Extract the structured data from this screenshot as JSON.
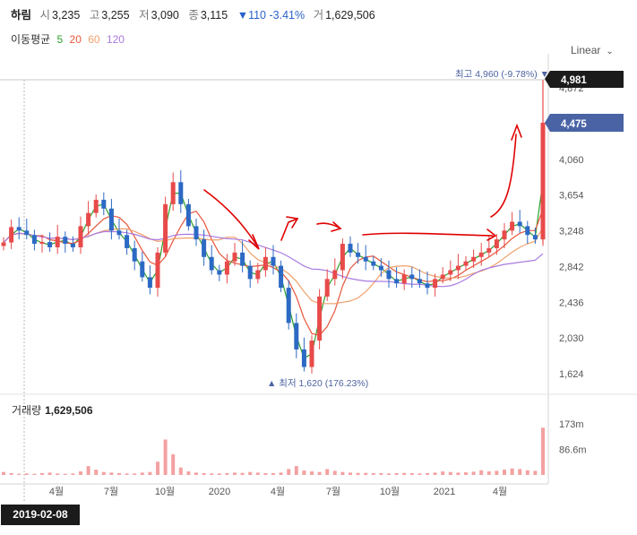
{
  "header": {
    "name": "하림",
    "open_label": "시",
    "open": "3,235",
    "high_label": "고",
    "high": "3,255",
    "low_label": "저",
    "low": "3,090",
    "close_label": "종",
    "close": "3,115",
    "change": "▼110 -3.41%",
    "vol_label": "거",
    "volume": "1,629,506"
  },
  "ma_legend": {
    "label": "이동평균",
    "p5": "5",
    "p20": "20",
    "p60": "60",
    "p120": "120",
    "colors": {
      "p5": "#2ca02c",
      "p20": "#e8553b",
      "p60": "#f0a06a",
      "p120": "#a97ae0"
    }
  },
  "scale_selector": {
    "label": "Linear",
    "icon": "chevron-down-icon"
  },
  "price_axis": {
    "ticks": [
      "4,872",
      "4,060",
      "3,654",
      "3,248",
      "2,842",
      "2,436",
      "2,030",
      "1,624"
    ]
  },
  "price_badges": {
    "high_badge": "4,981",
    "current_badge": "4,475"
  },
  "annotations": {
    "max_label": "최고 4,960 (-9.78%) ▼",
    "min_label": "▲ 최저 1,620 (176.23%)"
  },
  "volume_panel": {
    "label": "거래량",
    "value": "1,629,506",
    "ticks": [
      "173m",
      "86.6m"
    ]
  },
  "time_axis": {
    "labels": [
      "4월",
      "7월",
      "10월",
      "2020",
      "4월",
      "7월",
      "10월",
      "2021",
      "4월"
    ]
  },
  "crosshair_date": "2019-02-08",
  "colors": {
    "up": "#e84a4a",
    "down": "#2c69c4",
    "badge_dark": "#1b1b1b",
    "badge_blue": "#4a63a5",
    "volume": "#f3a1a1"
  },
  "chart_data": {
    "type": "candlestick",
    "y_axis_ticks": [
      4872,
      4060,
      3654,
      3248,
      2842,
      2436,
      2030,
      1624
    ],
    "ylim": [
      1500,
      4980
    ],
    "x_labels": [
      "4월",
      "7월",
      "10월",
      "2020",
      "4월",
      "7월",
      "10월",
      "2021",
      "4월"
    ],
    "annotations": {
      "max": 4960,
      "min": 1620
    },
    "series_close": [
      3115,
      3290,
      3250,
      3200,
      3100,
      3120,
      3060,
      3180,
      3100,
      3060,
      3300,
      3450,
      3600,
      3500,
      3250,
      3200,
      3050,
      2900,
      2720,
      2600,
      3000,
      3550,
      3800,
      3550,
      3300,
      3150,
      2950,
      2800,
      2750,
      2900,
      3000,
      2850,
      2700,
      2800,
      2950,
      2850,
      2600,
      2200,
      1900,
      1700,
      2000,
      2500,
      2700,
      2800,
      3100,
      3000,
      2950,
      2900,
      2850,
      2800,
      2700,
      2650,
      2750,
      2700,
      2650,
      2600,
      2700,
      2750,
      2800,
      2850,
      2900,
      2950,
      3000,
      3050,
      3150,
      3250,
      3350,
      3300,
      3200,
      3150,
      4475
    ],
    "volume_millions": [
      10,
      6,
      4,
      5,
      4,
      6,
      8,
      5,
      4,
      5,
      12,
      30,
      18,
      10,
      8,
      6,
      5,
      5,
      8,
      10,
      45,
      120,
      70,
      25,
      12,
      8,
      6,
      5,
      5,
      6,
      8,
      7,
      10,
      8,
      6,
      6,
      8,
      20,
      30,
      15,
      12,
      10,
      20,
      14,
      10,
      8,
      7,
      7,
      6,
      6,
      5,
      6,
      7,
      6,
      5,
      6,
      8,
      12,
      10,
      8,
      9,
      11,
      16,
      12,
      14,
      18,
      22,
      20,
      16,
      14,
      160
    ],
    "ma": [
      {
        "name": "5",
        "color": "#2ca02c"
      },
      {
        "name": "20",
        "color": "#e8553b"
      },
      {
        "name": "60",
        "color": "#f0a06a"
      },
      {
        "name": "120",
        "color": "#a97ae0"
      }
    ]
  }
}
